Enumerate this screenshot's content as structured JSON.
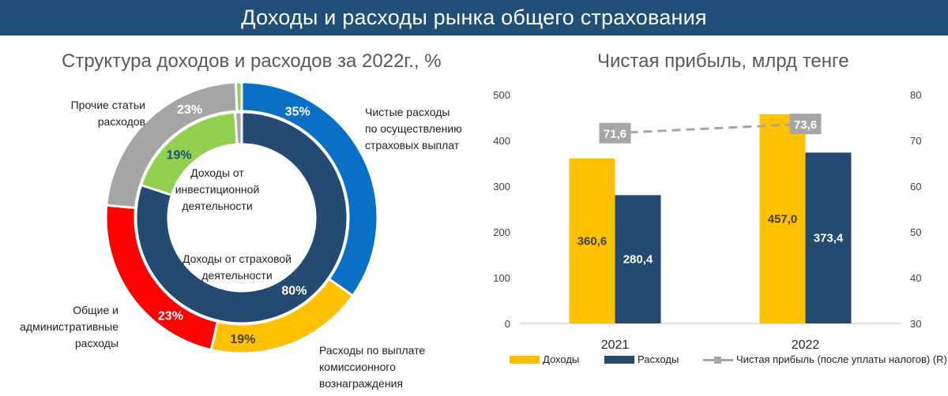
{
  "banner": {
    "title": "Доходы и расходы рынка общего страхования"
  },
  "colors": {
    "banner": "#1f4e79",
    "blue": "#0a70c6",
    "navy": "#244a72",
    "yellow": "#ffc000",
    "red": "#ff0000",
    "gray": "#a6a6a6",
    "green": "#92d050"
  },
  "chart_data": [
    {
      "type": "pie",
      "title": "Структура доходов и расходов за 2022г., %",
      "rings": [
        {
          "name": "",
          "slices": [
            {
              "label": "Чистые расходы по осуществлению страховых выплат",
              "lines": [
                "Чистые расходы",
                "по осуществлению",
                "страховых выплат"
              ],
              "value": 35,
              "value_label": "35%",
              "color": "#0a70c6"
            },
            {
              "label": "Расходы по выплате комиссионного вознаграждения",
              "lines": [
                "Расходы по выплате",
                "комиссионного",
                "вознаграждения"
              ],
              "value": 19,
              "value_label": "19%",
              "color": "#ffc000"
            },
            {
              "label": "Общие и административные расходы",
              "lines": [
                "Общие и",
                "административные",
                "расходы"
              ],
              "value": 23,
              "value_label": "23%",
              "color": "#ff0000"
            },
            {
              "label": "Прочие статьи расходов",
              "lines": [
                "Прочие статьи",
                "расходов"
              ],
              "value": 23,
              "value_label": "23%",
              "color": "#a6a6a6"
            },
            {
              "label": "",
              "lines": [],
              "value": 0.7,
              "value_label": "",
              "color": "#92d050"
            }
          ]
        },
        {
          "name": "",
          "slices": [
            {
              "label": "Доходы от страховой деятельности",
              "lines": [
                "Доходы от страховой",
                "деятельности"
              ],
              "value": 80,
              "value_label": "80%",
              "color": "#244a72"
            },
            {
              "label": "Доходы от инвестиционной деятельности",
              "lines": [
                "Доходы от",
                "инвестиционной",
                "деятельности"
              ],
              "value": 19,
              "value_label": "19%",
              "color": "#92d050"
            },
            {
              "label": "",
              "lines": [],
              "value": 1,
              "value_label": "",
              "color": "#a6a6a6"
            }
          ]
        }
      ]
    },
    {
      "type": "bar",
      "title": "Чистая прибыль, млрд тенге",
      "categories": [
        "2021",
        "2022"
      ],
      "series": [
        {
          "name": "Доходы",
          "values": [
            360.6,
            457.0
          ],
          "value_labels": [
            "360,6",
            "457,0"
          ],
          "color": "#ffc000",
          "axis": "left"
        },
        {
          "name": "Расходы",
          "values": [
            280.4,
            373.4
          ],
          "value_labels": [
            "280,4",
            "373,4"
          ],
          "color": "#244a72",
          "axis": "left"
        },
        {
          "name": "Чистая прибыль (после уплаты налогов) (R)",
          "type": "line",
          "values": [
            71.6,
            73.6
          ],
          "value_labels": [
            "71,6",
            "73,6"
          ],
          "color": "#a6a6a6",
          "axis": "right"
        }
      ],
      "ylim": [
        0,
        500
      ],
      "yticks": [
        0,
        100,
        200,
        300,
        400,
        500
      ],
      "y2lim": [
        30,
        80
      ],
      "y2ticks": [
        30,
        40,
        50,
        60,
        70,
        80
      ],
      "legend": "bottom",
      "grid": false
    }
  ]
}
